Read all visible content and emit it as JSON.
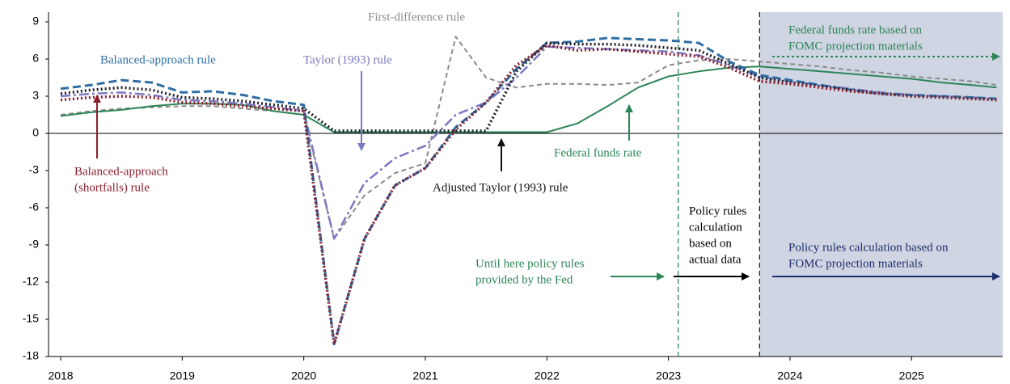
{
  "chart_data": {
    "type": "line",
    "x": [
      2018,
      2018.25,
      2018.5,
      2018.75,
      2019,
      2019.25,
      2019.5,
      2019.75,
      2020,
      2020.25,
      2020.5,
      2020.75,
      2021,
      2021.25,
      2021.5,
      2021.75,
      2022,
      2022.25,
      2022.5,
      2022.75,
      2023,
      2023.25,
      2023.5,
      2023.75,
      2024,
      2024.25,
      2024.5,
      2024.75,
      2025,
      2025.25,
      2025.5,
      2025.7
    ],
    "series": [
      {
        "name": "First-difference rule",
        "color": "#8c8c8c",
        "dash": "6,4",
        "width": 2,
        "values": [
          1.5,
          1.8,
          2.0,
          2.1,
          2.2,
          2.2,
          2.0,
          1.8,
          1.5,
          -8.5,
          -5,
          -3.2,
          -2.4,
          7.8,
          4.5,
          3.7,
          4.0,
          4.0,
          3.9,
          4.1,
          5.5,
          5.9,
          6.0,
          5.8,
          5.6,
          5.4,
          5.1,
          4.9,
          4.6,
          4.4,
          4.2,
          3.9
        ]
      },
      {
        "name": "Federal funds rate",
        "color": "#2e8558",
        "dash": "",
        "width": 2,
        "values": [
          1.4,
          1.7,
          1.9,
          2.2,
          2.4,
          2.4,
          2.3,
          1.8,
          1.5,
          0.1,
          0.1,
          0.1,
          0.1,
          0.1,
          0.1,
          0.1,
          0.1,
          0.8,
          2.2,
          3.7,
          4.6,
          5.0,
          5.3,
          5.4,
          5.2,
          5.0,
          4.8,
          4.6,
          4.4,
          4.1,
          3.9,
          3.7
        ]
      },
      {
        "name": "Taylor (1993) rule",
        "color": "#7b78c2",
        "dash": "12,4,3,4",
        "width": 2.5,
        "values": [
          3.0,
          3.2,
          3.3,
          3.1,
          2.7,
          2.6,
          2.4,
          2.1,
          1.8,
          -8.5,
          -4,
          -2,
          -1,
          1.5,
          2.5,
          4.5,
          7.0,
          6.9,
          6.8,
          6.7,
          6.6,
          6.3,
          5.5,
          4.6,
          4.2,
          3.9,
          3.6,
          3.3,
          3.1,
          3.0,
          2.9,
          2.8
        ]
      },
      {
        "name": "Balanced-approach rule",
        "color": "#2f6ea3",
        "dash": "10,5",
        "width": 3,
        "values": [
          3.6,
          3.9,
          4.3,
          4.1,
          3.3,
          3.4,
          3.1,
          2.6,
          2.3,
          -17,
          -8.5,
          -4.2,
          -2.8,
          0.5,
          2.5,
          5.2,
          7.3,
          7.4,
          7.7,
          7.6,
          7.5,
          7.3,
          5.8,
          4.7,
          4.3,
          3.9,
          3.5,
          3.2,
          3.1,
          3.0,
          2.9,
          2.8
        ]
      },
      {
        "name": "Adjusted Taylor (1993) rule",
        "color": "#1f1f2a",
        "dash": "2,3",
        "width": 3.5,
        "values": [
          3.2,
          3.5,
          3.7,
          3.5,
          2.9,
          2.8,
          2.6,
          2.3,
          2.0,
          0.2,
          0.2,
          0.2,
          0.2,
          0.2,
          0.2,
          5.0,
          7.3,
          7.2,
          7.2,
          7.1,
          6.9,
          6.7,
          5.6,
          4.5,
          4.1,
          3.8,
          3.5,
          3.2,
          3.0,
          2.9,
          2.8,
          2.7
        ]
      },
      {
        "name": "Balanced-approach (shortfalls) rule",
        "color": "#8b1f2e",
        "dash": "2,3",
        "width": 3.5,
        "values": [
          2.7,
          2.9,
          3.0,
          2.9,
          2.5,
          2.4,
          2.2,
          2.0,
          1.8,
          -17,
          -8.5,
          -4.2,
          -2.8,
          0.3,
          2.5,
          5.5,
          7.1,
          6.7,
          6.8,
          6.6,
          6.4,
          6.2,
          5.3,
          4.2,
          4.0,
          3.7,
          3.4,
          3.2,
          3.0,
          2.9,
          2.8,
          2.7
        ]
      }
    ],
    "xlim": [
      2017.9,
      2025.75
    ],
    "ylim": [
      -18,
      9
    ],
    "xticks": [
      2018,
      2019,
      2020,
      2021,
      2022,
      2023,
      2024,
      2025
    ],
    "yticks": [
      -18,
      -15,
      -12,
      -9,
      -6,
      -3,
      0,
      3,
      6,
      9
    ],
    "vlines": [
      2023.08,
      2023.75
    ],
    "shaded_from": 2023.75,
    "annotations": [
      {
        "lines": [
          "Balanced-approach rule"
        ]
      },
      {
        "lines": [
          "Balanced-approach",
          "(shortfalls) rule"
        ]
      },
      {
        "lines": [
          "Taylor (1993) rule"
        ]
      },
      {
        "lines": [
          "First-difference rule"
        ]
      },
      {
        "lines": [
          "Adjusted Taylor (1993) rule"
        ]
      },
      {
        "lines": [
          "Federal funds rate"
        ]
      },
      {
        "lines": [
          "Federal funds rate based on",
          "FOMC projection materials"
        ]
      },
      {
        "lines": [
          "Until here policy rules",
          "provided by the Fed"
        ]
      },
      {
        "lines": [
          "Policy rules",
          "calculation",
          "based on",
          "actual data"
        ]
      },
      {
        "lines": [
          "Policy rules calculation based on",
          "FOMC projection materials"
        ]
      }
    ]
  }
}
